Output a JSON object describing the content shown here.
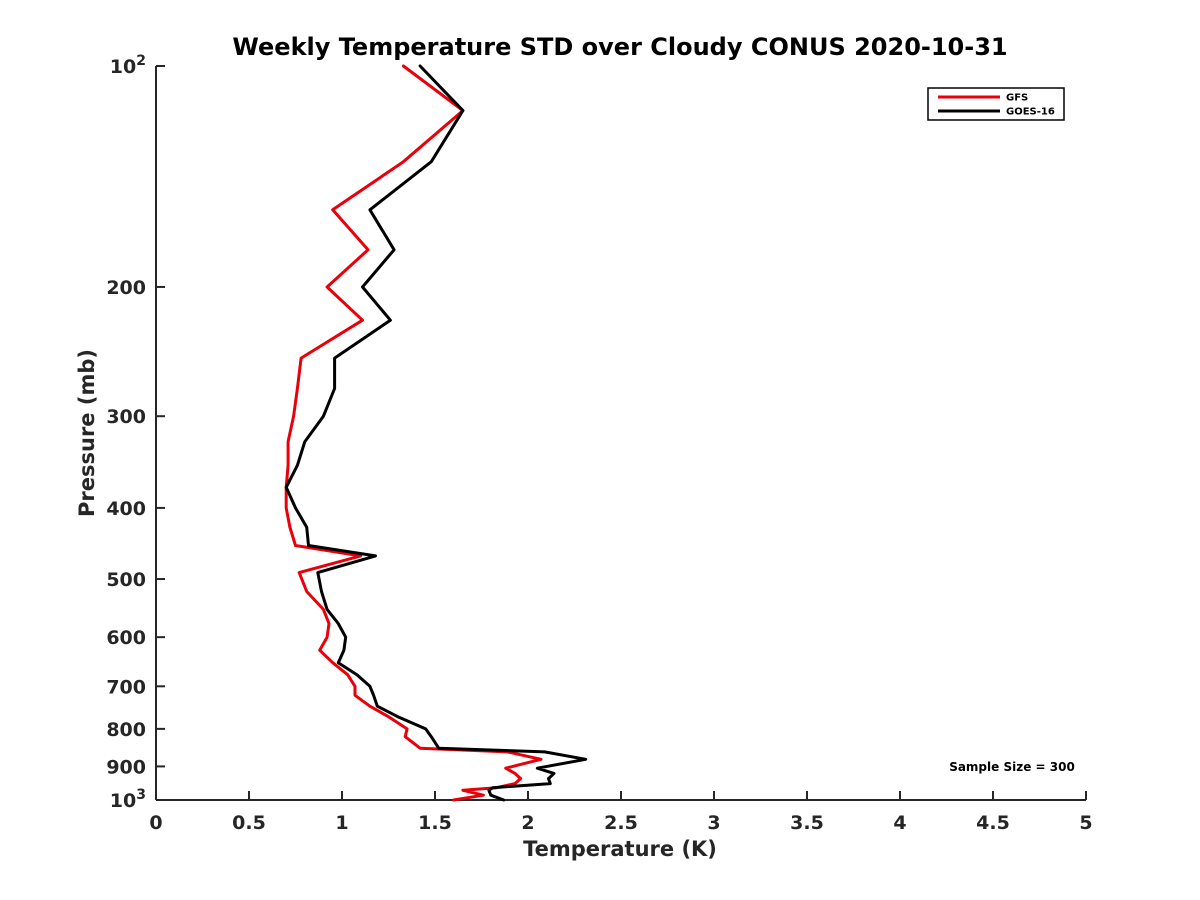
{
  "chart_data": {
    "type": "line",
    "title": "Weekly Temperature STD over Cloudy CONUS 2020-10-31",
    "xlabel": "Temperature (K)",
    "ylabel": "Pressure (mb)",
    "xlim": [
      0,
      5
    ],
    "ylim": [
      100,
      1000
    ],
    "y_scale": "log",
    "y_reversed": true,
    "grid": false,
    "x_ticks": [
      0,
      0.5,
      1,
      1.5,
      2,
      2.5,
      3,
      3.5,
      4,
      4.5,
      5
    ],
    "x_tick_labels": [
      "0",
      "0.5",
      "1",
      "1.5",
      "2",
      "2.5",
      "3",
      "3.5",
      "4",
      "4.5",
      "5"
    ],
    "y_ticks": [
      {
        "value": 100,
        "base": "10",
        "exp": "2"
      },
      {
        "value": 200,
        "label": "200"
      },
      {
        "value": 300,
        "label": "300"
      },
      {
        "value": 400,
        "label": "400"
      },
      {
        "value": 500,
        "label": "500"
      },
      {
        "value": 600,
        "label": "600"
      },
      {
        "value": 700,
        "label": "700"
      },
      {
        "value": 800,
        "label": "800"
      },
      {
        "value": 900,
        "label": "900"
      },
      {
        "value": 1000,
        "base": "10",
        "exp": "3"
      }
    ],
    "legend_position": "top-right",
    "annotation": "Sample Size = 300",
    "series": [
      {
        "name": "GFS",
        "color": "#e8000b",
        "x": [
          1.33,
          1.65,
          1.33,
          0.95,
          1.14,
          0.92,
          1.11,
          0.78,
          0.76,
          0.74,
          0.71,
          0.71,
          0.7,
          0.7,
          0.72,
          0.75,
          1.1,
          0.77,
          0.81,
          0.9,
          0.93,
          0.92,
          0.88,
          0.95,
          1.03,
          1.07,
          1.07,
          1.15,
          1.25,
          1.35,
          1.34,
          1.42,
          1.89,
          2.07,
          1.88,
          1.93,
          1.96,
          1.93,
          1.83,
          1.65,
          1.76,
          1.6
        ],
        "y": [
          100,
          115,
          135,
          157,
          178,
          200,
          222,
          250,
          275,
          300,
          325,
          350,
          375,
          400,
          425,
          450,
          465,
          490,
          520,
          550,
          575,
          600,
          625,
          650,
          675,
          700,
          720,
          745,
          770,
          800,
          820,
          850,
          860,
          880,
          905,
          920,
          935,
          950,
          962,
          970,
          985,
          1000
        ]
      },
      {
        "name": "GOES-16",
        "color": "#000000",
        "x": [
          1.42,
          1.65,
          1.48,
          1.15,
          1.28,
          1.11,
          1.26,
          0.96,
          0.96,
          0.9,
          0.8,
          0.76,
          0.7,
          0.75,
          0.81,
          0.82,
          1.18,
          0.87,
          0.89,
          0.92,
          0.98,
          1.02,
          1.01,
          0.98,
          1.08,
          1.15,
          1.17,
          1.19,
          1.3,
          1.45,
          1.48,
          1.52,
          2.09,
          2.31,
          2.05,
          2.14,
          2.11,
          2.12,
          1.81,
          1.79,
          1.8,
          1.87
        ],
        "y": [
          100,
          115,
          135,
          157,
          178,
          200,
          222,
          250,
          275,
          300,
          325,
          350,
          375,
          400,
          425,
          450,
          465,
          490,
          520,
          550,
          575,
          600,
          625,
          650,
          675,
          700,
          720,
          745,
          770,
          800,
          820,
          850,
          860,
          880,
          905,
          920,
          935,
          950,
          962,
          970,
          985,
          1000
        ]
      }
    ]
  }
}
